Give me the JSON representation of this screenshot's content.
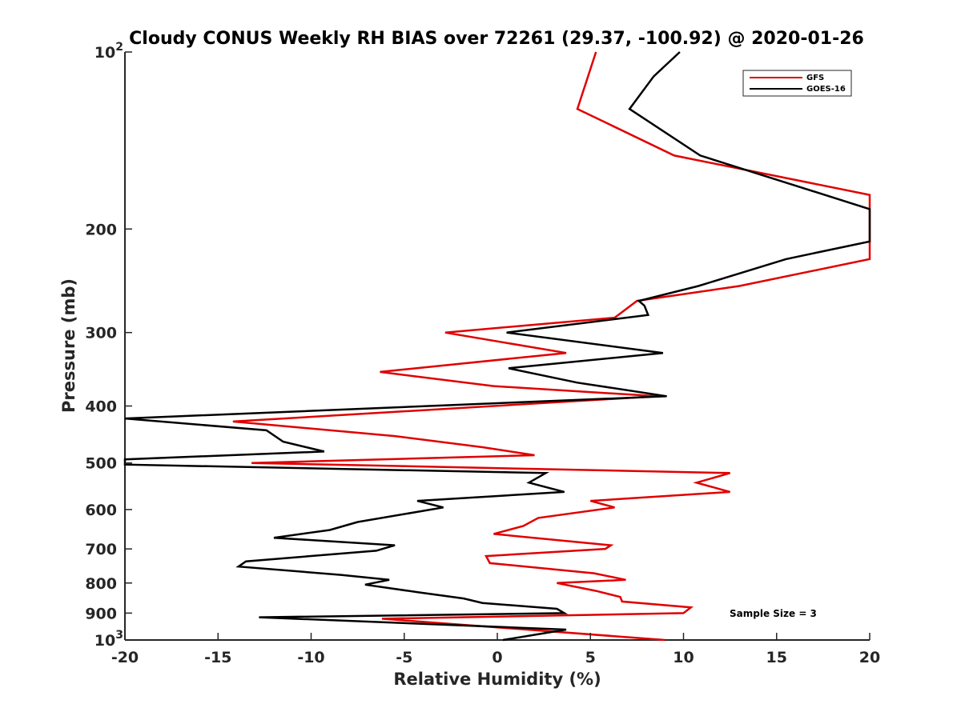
{
  "chart_data": {
    "type": "line",
    "title": "Cloudy CONUS Weekly RH BIAS over 72261 (29.37, -100.92) @ 2020-01-26",
    "xlabel": "Relative Humidity (%)",
    "ylabel": "Pressure (mb)",
    "xlim": [
      -20,
      20
    ],
    "ylim": [
      1000,
      100
    ],
    "yscale": "log",
    "y_reversed": true,
    "grid": false,
    "legend_position": "top-right",
    "xticks": [
      -20,
      -15,
      -10,
      -5,
      0,
      5,
      10,
      15,
      20
    ],
    "xtick_labels": [
      "-20",
      "-15",
      "-10",
      "-5",
      "0",
      "5",
      "10",
      "15",
      "20"
    ],
    "yticks": [
      100,
      200,
      300,
      400,
      500,
      600,
      700,
      800,
      900,
      1000
    ],
    "ytick_labels": [
      {
        "base": "10",
        "exp": "2"
      },
      {
        "base": "200",
        "exp": ""
      },
      {
        "base": "300",
        "exp": ""
      },
      {
        "base": "400",
        "exp": ""
      },
      {
        "base": "500",
        "exp": ""
      },
      {
        "base": "600",
        "exp": ""
      },
      {
        "base": "700",
        "exp": ""
      },
      {
        "base": "800",
        "exp": ""
      },
      {
        "base": "900",
        "exp": ""
      },
      {
        "base": "10",
        "exp": "3"
      }
    ],
    "annotation": "Sample Size = 3",
    "series": [
      {
        "name": "GFS",
        "color": "#e00000",
        "points": [
          [
            5.3,
            100
          ],
          [
            4.3,
            125
          ],
          [
            9.5,
            150
          ],
          [
            20.0,
            175
          ],
          [
            20.0,
            225
          ],
          [
            13.0,
            250
          ],
          [
            7.5,
            265
          ],
          [
            6.3,
            283
          ],
          [
            -2.8,
            300
          ],
          [
            3.7,
            325
          ],
          [
            -6.3,
            350
          ],
          [
            -0.2,
            370
          ],
          [
            8.6,
            385
          ],
          [
            -14.2,
            425
          ],
          [
            -5.5,
            450
          ],
          [
            -0.8,
            470
          ],
          [
            2.0,
            485
          ],
          [
            -13.2,
            500
          ],
          [
            12.5,
            520
          ],
          [
            10.7,
            540
          ],
          [
            12.5,
            560
          ],
          [
            5.0,
            580
          ],
          [
            6.3,
            595
          ],
          [
            2.2,
            620
          ],
          [
            1.4,
            640
          ],
          [
            -0.2,
            660
          ],
          [
            6.1,
            690
          ],
          [
            5.8,
            700
          ],
          [
            -0.6,
            720
          ],
          [
            -0.4,
            740
          ],
          [
            5.2,
            770
          ],
          [
            6.9,
            790
          ],
          [
            3.2,
            800
          ],
          [
            5.3,
            825
          ],
          [
            6.6,
            845
          ],
          [
            6.7,
            860
          ],
          [
            10.4,
            880
          ],
          [
            10.0,
            900
          ],
          [
            -6.2,
            920
          ],
          [
            9.0,
            1000
          ]
        ]
      },
      {
        "name": "GOES-16",
        "color": "#000000",
        "points": [
          [
            9.8,
            100
          ],
          [
            8.4,
            110
          ],
          [
            7.1,
            125
          ],
          [
            10.9,
            150
          ],
          [
            20.0,
            185
          ],
          [
            20.0,
            210
          ],
          [
            15.5,
            225
          ],
          [
            10.8,
            250
          ],
          [
            7.6,
            265
          ],
          [
            7.9,
            270
          ],
          [
            8.1,
            280
          ],
          [
            0.5,
            300
          ],
          [
            8.9,
            325
          ],
          [
            0.6,
            345
          ],
          [
            4.3,
            365
          ],
          [
            9.1,
            385
          ],
          [
            -20.0,
            420
          ],
          [
            -12.4,
            440
          ],
          [
            -11.5,
            460
          ],
          [
            -9.3,
            478
          ],
          [
            -20.0,
            493
          ],
          [
            -20.0,
            503
          ],
          [
            2.6,
            520
          ],
          [
            1.7,
            540
          ],
          [
            3.6,
            560
          ],
          [
            -4.3,
            580
          ],
          [
            -2.9,
            595
          ],
          [
            -7.5,
            630
          ],
          [
            -9.0,
            650
          ],
          [
            -12.0,
            670
          ],
          [
            -5.5,
            690
          ],
          [
            -6.5,
            705
          ],
          [
            -13.5,
            735
          ],
          [
            -13.9,
            750
          ],
          [
            -8.4,
            775
          ],
          [
            -5.8,
            790
          ],
          [
            -7.1,
            805
          ],
          [
            -4.2,
            830
          ],
          [
            -1.8,
            850
          ],
          [
            -0.8,
            865
          ],
          [
            3.2,
            885
          ],
          [
            3.6,
            900
          ],
          [
            -12.8,
            915
          ],
          [
            3.7,
            960
          ],
          [
            0.3,
            1000
          ]
        ]
      }
    ]
  }
}
